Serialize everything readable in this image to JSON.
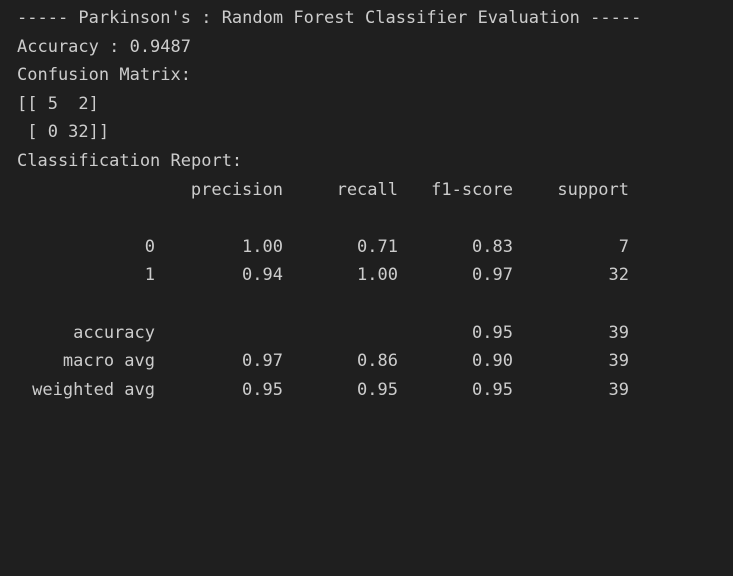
{
  "header": "----- Parkinson's : Random Forest Classifier Evaluation -----",
  "accuracy_line": "Accuracy : 0.9487",
  "confusion_matrix_label": "Confusion Matrix:",
  "confusion_matrix_rows": [
    "[[ 5  2]",
    " [ 0 32]]"
  ],
  "report_label": "Classification Report:",
  "report_headers": {
    "precision": "precision",
    "recall": "recall",
    "f1": "f1-score",
    "support": "support"
  },
  "report_rows": [
    {
      "label": "0",
      "precision": "1.00",
      "recall": "0.71",
      "f1": "0.83",
      "support": "7"
    },
    {
      "label": "1",
      "precision": "0.94",
      "recall": "1.00",
      "f1": "0.97",
      "support": "32"
    }
  ],
  "summary_rows": [
    {
      "label": "accuracy",
      "precision": "",
      "recall": "",
      "f1": "0.95",
      "support": "39"
    },
    {
      "label": "macro avg",
      "precision": "0.97",
      "recall": "0.86",
      "f1": "0.90",
      "support": "39"
    },
    {
      "label": "weighted avg",
      "precision": "0.95",
      "recall": "0.95",
      "f1": "0.95",
      "support": "39"
    }
  ]
}
